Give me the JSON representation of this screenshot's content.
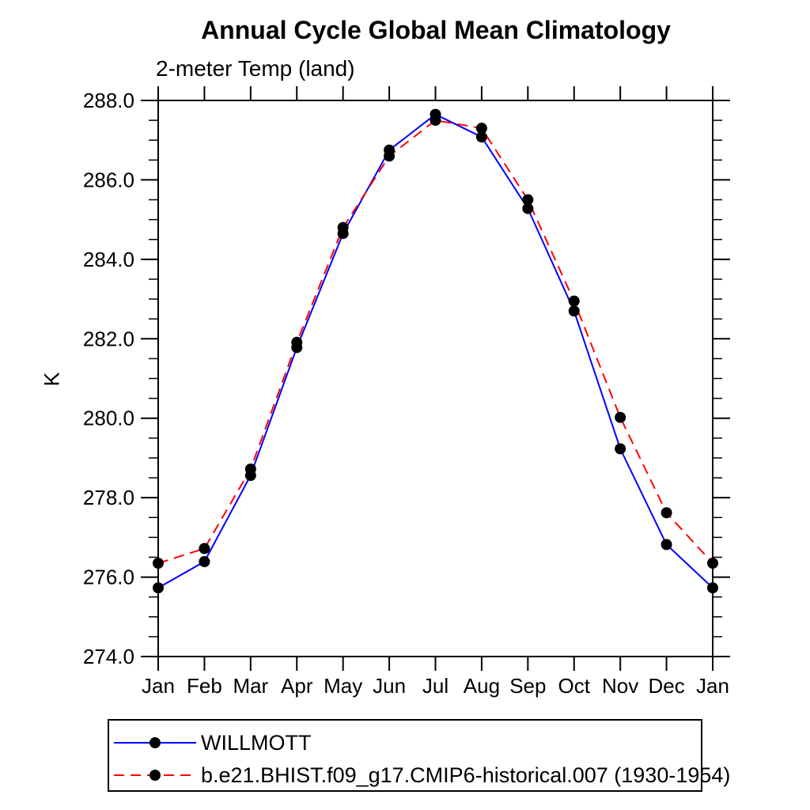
{
  "page": {
    "background": "#ffffff"
  },
  "chart_data": {
    "type": "line",
    "title": "Annual Cycle Global Mean Climatology",
    "subtitle": "2-meter Temp (land)",
    "ylabel": "K",
    "xlabel": "",
    "categories": [
      "Jan",
      "Feb",
      "Mar",
      "Apr",
      "May",
      "Jun",
      "Jul",
      "Aug",
      "Sep",
      "Oct",
      "Nov",
      "Dec",
      "Jan"
    ],
    "ylim": [
      274.0,
      288.0
    ],
    "ytick_values": [
      274.0,
      276.0,
      278.0,
      280.0,
      282.0,
      284.0,
      286.0,
      288.0
    ],
    "ytick_labels": [
      "274.0",
      "276.0",
      "278.0",
      "280.0",
      "282.0",
      "284.0",
      "286.0",
      "288.0"
    ],
    "yminor_step": 0.5,
    "grid": false,
    "legend_position": "below-left",
    "axis_color": "#000000",
    "marker_color": "#000000",
    "series": [
      {
        "name": "WILLMOTT",
        "color": "#0000ff",
        "line_style": "solid",
        "marker": "filled-circle",
        "values": [
          275.73,
          276.39,
          278.56,
          281.78,
          284.65,
          286.75,
          287.65,
          287.08,
          285.28,
          282.7,
          279.23,
          276.82,
          275.73
        ]
      },
      {
        "name": "b.e21.BHIST.f09_g17.CMIP6-historical.007 (1930-1954)",
        "color": "#ff0000",
        "line_style": "dashed",
        "marker": "filled-circle",
        "values": [
          276.35,
          276.72,
          278.72,
          281.91,
          284.8,
          286.6,
          287.5,
          287.3,
          285.5,
          282.95,
          280.02,
          277.62,
          276.35
        ]
      }
    ]
  }
}
